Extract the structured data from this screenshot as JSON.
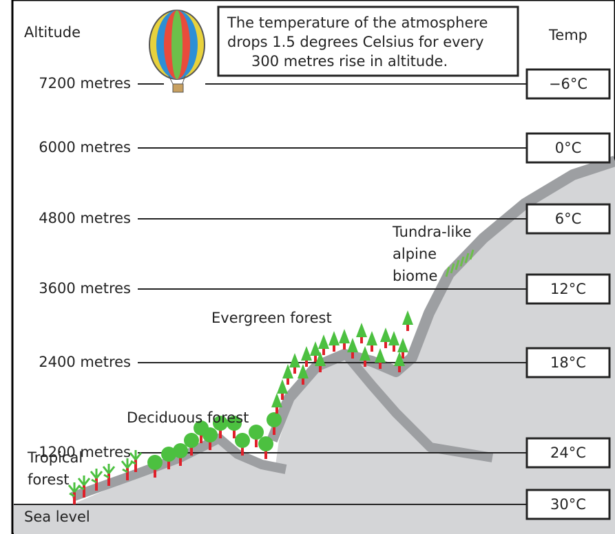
{
  "headers": {
    "altitude": "Altitude",
    "temp": "Temp"
  },
  "note": {
    "lines": [
      "The temperature of the atmosphere",
      "drops 1.5 degrees Celsius for every",
      "300 metres rise in altitude."
    ]
  },
  "levels": [
    {
      "altitude": "7200 metres",
      "temp": "−6°C"
    },
    {
      "altitude": "6000 metres",
      "temp": "0°C"
    },
    {
      "altitude": "4800 metres",
      "temp": "6°C"
    },
    {
      "altitude": "3600 metres",
      "temp": "12°C"
    },
    {
      "altitude": "2400 metres",
      "temp": "18°C"
    },
    {
      "altitude": "1200 metres",
      "temp": "24°C"
    },
    {
      "altitude": "Sea level",
      "temp": "30°C"
    }
  ],
  "biomes": {
    "tundra": [
      "Tundra-like",
      "alpine",
      "biome"
    ],
    "evergreen": "Evergreen forest",
    "deciduous": "Deciduous forest",
    "tropical": [
      "Tropical",
      "forest"
    ]
  }
}
